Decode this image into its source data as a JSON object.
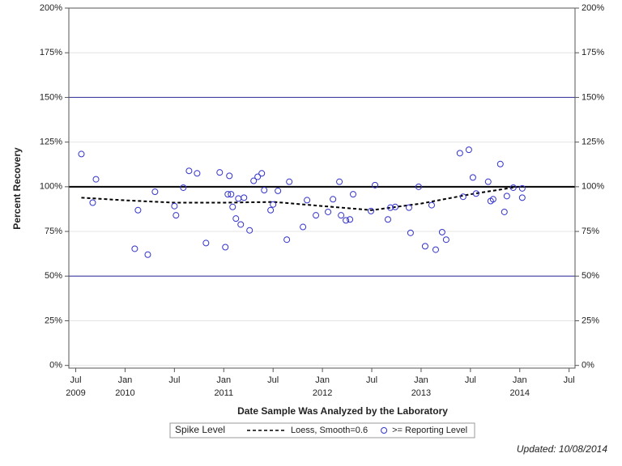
{
  "chart_data": {
    "type": "scatter",
    "x_label": "Date Sample Was Analyzed by the Laboratory",
    "y_label": "Percent Recovery",
    "legend_title": "Spike Level",
    "footnote": "Updated: 10/08/2014",
    "xlim": [
      2009.43,
      2014.56
    ],
    "xticks": [
      {
        "value": 2009.5,
        "label": "Jul 2009"
      },
      {
        "value": 2010.0,
        "label": "Jan 2010"
      },
      {
        "value": 2010.5,
        "label": "Jul"
      },
      {
        "value": 2011.0,
        "label": "Jan 2011"
      },
      {
        "value": 2011.5,
        "label": "Jul"
      },
      {
        "value": 2012.0,
        "label": "Jan 2012"
      },
      {
        "value": 2012.5,
        "label": "Jul"
      },
      {
        "value": 2013.0,
        "label": "Jan 2013"
      },
      {
        "value": 2013.5,
        "label": "Jul"
      },
      {
        "value": 2014.0,
        "label": "Jan 2014"
      },
      {
        "value": 2014.5,
        "label": "Jul"
      }
    ],
    "ylim": [
      -1.5,
      200
    ],
    "yticks": [
      {
        "value": 0,
        "label": "0%"
      },
      {
        "value": 25,
        "label": "25%"
      },
      {
        "value": 50,
        "label": "50%"
      },
      {
        "value": 75,
        "label": "75%"
      },
      {
        "value": 100,
        "label": "100%"
      },
      {
        "value": 125,
        "label": "125%"
      },
      {
        "value": 150,
        "label": "150%"
      },
      {
        "value": 175,
        "label": "175%"
      },
      {
        "value": 200,
        "label": "200%"
      }
    ],
    "grid": true,
    "mirror_y_axis": true,
    "reference_lines": [
      {
        "value": 150,
        "color": "#2b2b99",
        "width": 1
      },
      {
        "value": 100,
        "color": "#000000",
        "width": 2
      },
      {
        "value": 50,
        "color": "#2b2b99",
        "width": 1
      }
    ],
    "series": [
      {
        "name": "Loess, Smooth=0.6",
        "mode": "line",
        "color": "#000000",
        "x": [
          2009.557,
          2009.967,
          2010.5,
          2011.0,
          2011.508,
          2012.0,
          2012.5,
          2013.0,
          2013.5,
          2013.984
        ],
        "values": [
          93.9,
          92.5,
          91.1,
          91.1,
          91.5,
          89.2,
          86.9,
          90.6,
          95.8,
          100
        ]
      },
      {
        "name": ">= Reporting Level",
        "mode": "markers",
        "color": "#3333cc",
        "x": [
          2009.557,
          2009.672,
          2009.705,
          2010.098,
          2010.131,
          2010.23,
          2010.303,
          2010.5,
          2010.516,
          2010.59,
          2010.648,
          2010.73,
          2010.82,
          2010.959,
          2011.016,
          2011.041,
          2011.057,
          2011.074,
          2011.09,
          2011.123,
          2011.148,
          2011.172,
          2011.205,
          2011.262,
          2011.303,
          2011.344,
          2011.385,
          2011.41,
          2011.475,
          2011.5,
          2011.549,
          2011.639,
          2011.664,
          2011.803,
          2011.844,
          2011.934,
          2012.057,
          2012.107,
          2012.172,
          2012.189,
          2012.238,
          2012.279,
          2012.311,
          2012.492,
          2012.533,
          2012.664,
          2012.689,
          2012.738,
          2012.877,
          2012.893,
          2012.975,
          2013.041,
          2013.107,
          2013.148,
          2013.213,
          2013.254,
          2013.393,
          2013.426,
          2013.484,
          2013.525,
          2013.557,
          2013.68,
          2013.705,
          2013.73,
          2013.803,
          2013.844,
          2013.869,
          2013.934,
          2014.025,
          2014.025
        ],
        "values": [
          118.3,
          91.1,
          104.2,
          65.3,
          86.9,
          62.0,
          97.2,
          89.2,
          84.0,
          99.5,
          108.9,
          107.5,
          68.5,
          108.0,
          66.2,
          95.8,
          106.1,
          95.8,
          88.7,
          82.2,
          93.4,
          78.9,
          93.9,
          75.6,
          103.3,
          105.6,
          107.5,
          98.1,
          86.9,
          90.1,
          97.7,
          70.4,
          102.8,
          77.5,
          92.5,
          84.0,
          85.9,
          93.0,
          102.8,
          84.0,
          81.2,
          81.7,
          95.8,
          86.4,
          100.9,
          81.7,
          88.3,
          88.7,
          88.3,
          74.2,
          100.0,
          66.7,
          89.7,
          64.8,
          74.6,
          70.4,
          118.8,
          94.4,
          120.7,
          105.2,
          96.2,
          102.8,
          92.0,
          93.0,
          112.7,
          85.9,
          94.8,
          99.5,
          99.1,
          93.9
        ]
      }
    ]
  }
}
